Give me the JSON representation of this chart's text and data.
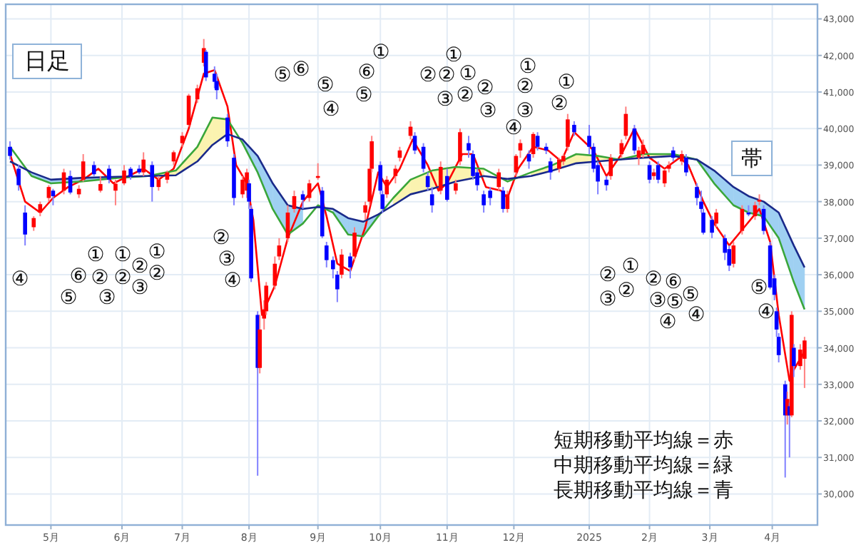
{
  "chart_data": {
    "type": "candlestick",
    "title": "日足",
    "x": [
      "2024-04-12",
      "2024-04-16",
      "2024-04-19",
      "2024-04-23",
      "2024-04-26",
      "2024-04-30",
      "2024-05-02",
      "2024-05-07",
      "2024-05-10",
      "2024-05-14",
      "2024-05-16",
      "2024-05-21",
      "2024-05-24",
      "2024-05-28",
      "2024-05-31",
      "2024-06-04",
      "2024-06-07",
      "2024-06-11",
      "2024-06-13",
      "2024-06-17",
      "2024-06-20",
      "2024-06-24",
      "2024-06-27",
      "2024-07-01",
      "2024-07-04",
      "2024-07-08",
      "2024-07-11",
      "2024-07-12",
      "2024-07-16",
      "2024-07-17",
      "2024-07-22",
      "2024-07-25",
      "2024-07-29",
      "2024-07-31",
      "2024-08-01",
      "2024-08-02",
      "2024-08-05",
      "2024-08-06",
      "2024-08-08",
      "2024-08-09",
      "2024-08-13",
      "2024-08-15",
      "2024-08-19",
      "2024-08-22",
      "2024-08-26",
      "2024-08-29",
      "2024-09-02",
      "2024-09-04",
      "2024-09-06",
      "2024-09-09",
      "2024-09-11",
      "2024-09-13",
      "2024-09-17",
      "2024-09-19",
      "2024-09-24",
      "2024-09-26",
      "2024-09-27",
      "2024-10-01",
      "2024-10-02",
      "2024-10-04",
      "2024-10-08",
      "2024-10-10",
      "2024-10-15",
      "2024-10-17",
      "2024-10-21",
      "2024-10-23",
      "2024-10-25",
      "2024-10-29",
      "2024-11-01",
      "2024-11-05",
      "2024-11-07",
      "2024-11-11",
      "2024-11-13",
      "2024-11-15",
      "2024-11-18",
      "2024-11-21",
      "2024-11-25",
      "2024-11-27",
      "2024-11-29",
      "2024-12-03",
      "2024-12-05",
      "2024-12-09",
      "2024-12-11",
      "2024-12-13",
      "2024-12-17",
      "2024-12-19",
      "2024-12-23",
      "2024-12-25",
      "2024-12-27",
      "2024-12-30",
      "2025-01-06",
      "2025-01-08",
      "2025-01-10",
      "2025-01-14",
      "2025-01-16",
      "2025-01-21",
      "2025-01-23",
      "2025-01-27",
      "2025-01-29",
      "2025-01-31",
      "2025-02-03",
      "2025-02-05",
      "2025-02-07",
      "2025-02-10",
      "2025-02-12",
      "2025-02-14",
      "2025-02-18",
      "2025-02-20",
      "2025-02-25",
      "2025-02-27",
      "2025-02-28",
      "2025-03-04",
      "2025-03-06",
      "2025-03-10",
      "2025-03-12",
      "2025-03-14",
      "2025-03-18",
      "2025-03-21",
      "2025-03-24",
      "2025-03-26",
      "2025-03-28",
      "2025-03-31",
      "2025-04-02",
      "2025-04-03",
      "2025-04-04",
      "2025-04-07",
      "2025-04-08",
      "2025-04-09",
      "2025-04-10",
      "2025-04-11",
      "2025-04-14",
      "2025-04-16"
    ],
    "ohlc": [
      [
        39500,
        39650,
        39150,
        39250
      ],
      [
        38900,
        39000,
        38300,
        38450
      ],
      [
        37700,
        37900,
        36800,
        37100
      ],
      [
        37300,
        37600,
        37200,
        37550
      ],
      [
        37700,
        38000,
        37600,
        37930
      ],
      [
        38100,
        38450,
        38000,
        38400
      ],
      [
        38300,
        38350,
        37900,
        38150
      ],
      [
        38300,
        38900,
        38200,
        38800
      ],
      [
        38700,
        38850,
        38200,
        38250
      ],
      [
        38200,
        38450,
        38100,
        38350
      ],
      [
        38600,
        39300,
        38550,
        39100
      ],
      [
        39000,
        39100,
        38700,
        38750
      ],
      [
        38300,
        38700,
        38250,
        38480
      ],
      [
        38900,
        39000,
        38500,
        38600
      ],
      [
        38300,
        38600,
        37900,
        38490
      ],
      [
        38500,
        39000,
        38450,
        38850
      ],
      [
        38900,
        38950,
        38600,
        38680
      ],
      [
        38900,
        39000,
        38750,
        38800
      ],
      [
        38800,
        39350,
        38700,
        39150
      ],
      [
        39000,
        39100,
        38000,
        38400
      ],
      [
        38400,
        38700,
        38300,
        38600
      ],
      [
        38600,
        38850,
        38500,
        38800
      ],
      [
        39100,
        39400,
        39000,
        39350
      ],
      [
        39600,
        39900,
        39500,
        39800
      ],
      [
        40100,
        40950,
        40050,
        40900
      ],
      [
        40800,
        41200,
        40700,
        41100
      ],
      [
        41800,
        42450,
        41700,
        42200
      ],
      [
        42100,
        42150,
        41300,
        41400
      ],
      [
        41500,
        41700,
        41100,
        41280
      ],
      [
        41300,
        41500,
        40800,
        41050
      ],
      [
        40300,
        40400,
        39500,
        39650
      ],
      [
        39200,
        39300,
        37900,
        38100
      ],
      [
        38200,
        38700,
        38100,
        38600
      ],
      [
        38300,
        38900,
        38100,
        38800
      ],
      [
        38500,
        38600,
        37800,
        38000
      ],
      [
        37800,
        37900,
        35800,
        35900
      ],
      [
        34900,
        35000,
        30500,
        33450
      ],
      [
        33450,
        34900,
        33300,
        34500
      ],
      [
        34800,
        35300,
        34500,
        35050
      ],
      [
        35000,
        35800,
        34900,
        35700
      ],
      [
        35700,
        36500,
        35600,
        36300
      ],
      [
        36500,
        37000,
        36400,
        36800
      ],
      [
        37000,
        37900,
        36900,
        37700
      ],
      [
        37800,
        38300,
        37700,
        38150
      ],
      [
        38200,
        38300,
        37800,
        38050
      ],
      [
        38100,
        38600,
        38000,
        38500
      ],
      [
        38650,
        39050,
        38600,
        38700
      ],
      [
        38300,
        38400,
        37000,
        37050
      ],
      [
        36800,
        36900,
        36200,
        36400
      ],
      [
        36400,
        36500,
        35900,
        36150
      ],
      [
        36000,
        36100,
        35250,
        35600
      ],
      [
        36000,
        36700,
        35900,
        36550
      ],
      [
        36500,
        36600,
        35900,
        36200
      ],
      [
        36500,
        37300,
        36400,
        37150
      ],
      [
        37700,
        38000,
        37500,
        37900
      ],
      [
        38000,
        38900,
        37900,
        38900
      ],
      [
        38900,
        39800,
        38800,
        39650
      ],
      [
        39000,
        39100,
        38200,
        38300
      ],
      [
        38200,
        38300,
        37700,
        37800
      ],
      [
        38200,
        38700,
        38100,
        38600
      ],
      [
        38700,
        39000,
        38500,
        38900
      ],
      [
        39200,
        39500,
        39100,
        39400
      ],
      [
        39800,
        40200,
        39700,
        40050
      ],
      [
        39800,
        39900,
        39300,
        39400
      ],
      [
        39500,
        39600,
        38800,
        38900
      ],
      [
        38700,
        38800,
        38300,
        38400
      ],
      [
        38200,
        38400,
        37700,
        37900
      ],
      [
        38300,
        39100,
        38200,
        38950
      ],
      [
        38700,
        38900,
        38000,
        38050
      ],
      [
        38300,
        38600,
        38200,
        38500
      ],
      [
        39100,
        40000,
        39000,
        39900
      ],
      [
        39600,
        39800,
        39200,
        39400
      ],
      [
        39300,
        39400,
        38600,
        38700
      ],
      [
        38800,
        38900,
        38300,
        38450
      ],
      [
        38200,
        38300,
        37700,
        37900
      ],
      [
        38300,
        38400,
        37900,
        38100
      ],
      [
        38400,
        38900,
        38300,
        38800
      ],
      [
        38300,
        38400,
        37700,
        37800
      ],
      [
        37800,
        38300,
        37700,
        38200
      ],
      [
        38800,
        39300,
        38700,
        39250
      ],
      [
        39400,
        39700,
        39200,
        39600
      ],
      [
        39300,
        39400,
        38900,
        39100
      ],
      [
        39300,
        39900,
        39200,
        39850
      ],
      [
        39800,
        39900,
        39400,
        39500
      ],
      [
        39500,
        39600,
        39300,
        39400
      ],
      [
        39100,
        39200,
        38600,
        38800
      ],
      [
        38900,
        39200,
        38800,
        39150
      ],
      [
        39100,
        39300,
        39000,
        39250
      ],
      [
        39500,
        40400,
        39400,
        40250
      ],
      [
        40100,
        40200,
        39800,
        39900
      ],
      [
        39800,
        40100,
        39300,
        39500
      ],
      [
        39500,
        39600,
        38800,
        38900
      ],
      [
        39000,
        39100,
        38200,
        38550
      ],
      [
        38600,
        38700,
        38300,
        38450
      ],
      [
        38700,
        39300,
        38600,
        39200
      ],
      [
        39300,
        39700,
        39200,
        39600
      ],
      [
        39800,
        40600,
        39700,
        40400
      ],
      [
        40000,
        40100,
        39300,
        39400
      ],
      [
        39200,
        39500,
        39000,
        39400
      ],
      [
        39300,
        39700,
        39200,
        39550
      ],
      [
        39000,
        39100,
        38500,
        38600
      ],
      [
        38700,
        38900,
        38600,
        38800
      ],
      [
        39000,
        39100,
        38500,
        38600
      ],
      [
        38500,
        38900,
        38400,
        38850
      ],
      [
        38900,
        39100,
        38800,
        39000
      ],
      [
        39400,
        39500,
        39100,
        39200
      ],
      [
        39100,
        39400,
        39000,
        39300
      ],
      [
        39200,
        39300,
        38700,
        38800
      ],
      [
        38400,
        38500,
        37900,
        38100
      ],
      [
        38000,
        38300,
        37700,
        37800
      ],
      [
        37700,
        37800,
        37100,
        37150
      ],
      [
        37500,
        37600,
        37000,
        37150
      ],
      [
        37400,
        37800,
        37300,
        37700
      ],
      [
        37000,
        37100,
        36400,
        36600
      ],
      [
        36700,
        36800,
        36100,
        36250
      ],
      [
        36300,
        36900,
        36200,
        36800
      ],
      [
        37200,
        37900,
        37100,
        37800
      ],
      [
        37700,
        37900,
        37600,
        37650
      ],
      [
        37600,
        38000,
        37500,
        37900
      ],
      [
        38000,
        38200,
        37900,
        38050
      ],
      [
        37800,
        37900,
        37100,
        37200
      ],
      [
        36800,
        36900,
        35600,
        35650
      ],
      [
        35900,
        36000,
        35300,
        35450
      ],
      [
        35000,
        35100,
        34300,
        34500
      ],
      [
        34300,
        34400,
        33600,
        33800
      ],
      [
        33000,
        33100,
        30450,
        32150
      ],
      [
        32150,
        32800,
        31900,
        32600
      ],
      [
        32400,
        32500,
        31000,
        32150
      ],
      [
        32150,
        35000,
        32100,
        34900
      ],
      [
        34000,
        34100,
        33200,
        33500
      ],
      [
        33500,
        34100,
        33400,
        33950
      ],
      [
        33700,
        34300,
        32900,
        34200
      ]
    ],
    "colors": [
      "#0000ff",
      "#0000ff",
      "#0000ff",
      "#ff0000",
      "#ff0000",
      "#ff0000",
      "#0000ff",
      "#ff0000",
      "#0000ff",
      "#ff0000",
      "#ff0000",
      "#0000ff",
      "#ff0000",
      "#0000ff",
      "#ff0000",
      "#ff0000",
      "#0000ff",
      "#0000ff",
      "#ff0000",
      "#0000ff",
      "#ff0000",
      "#ff0000",
      "#ff0000",
      "#ff0000",
      "#ff0000",
      "#ff0000",
      "#ff0000",
      "#0000ff",
      "#0000ff",
      "#0000ff",
      "#0000ff",
      "#0000ff",
      "#ff0000",
      "#ff0000",
      "#0000ff",
      "#0000ff",
      "#0000ff",
      "#ff0000",
      "#ff0000",
      "#ff0000",
      "#ff0000",
      "#ff0000",
      "#ff0000",
      "#ff0000",
      "#0000ff",
      "#ff0000",
      "#ff0000",
      "#0000ff",
      "#0000ff",
      "#0000ff",
      "#0000ff",
      "#ff0000",
      "#0000ff",
      "#ff0000",
      "#ff0000",
      "#ff0000",
      "#ff0000",
      "#0000ff",
      "#0000ff",
      "#ff0000",
      "#ff0000",
      "#ff0000",
      "#ff0000",
      "#0000ff",
      "#0000ff",
      "#0000ff",
      "#0000ff",
      "#ff0000",
      "#0000ff",
      "#ff0000",
      "#ff0000",
      "#0000ff",
      "#0000ff",
      "#0000ff",
      "#0000ff",
      "#0000ff",
      "#ff0000",
      "#0000ff",
      "#ff0000",
      "#ff0000",
      "#ff0000",
      "#0000ff",
      "#ff0000",
      "#0000ff",
      "#0000ff",
      "#0000ff",
      "#ff0000",
      "#ff0000",
      "#ff0000",
      "#0000ff",
      "#0000ff",
      "#0000ff",
      "#0000ff",
      "#0000ff",
      "#ff0000",
      "#ff0000",
      "#ff0000",
      "#0000ff",
      "#ff0000",
      "#ff0000",
      "#0000ff",
      "#ff0000",
      "#0000ff",
      "#ff0000",
      "#ff0000",
      "#0000ff",
      "#ff0000",
      "#0000ff",
      "#0000ff",
      "#0000ff",
      "#0000ff",
      "#0000ff",
      "#ff0000",
      "#0000ff",
      "#0000ff",
      "#ff0000",
      "#ff0000",
      "#0000ff",
      "#ff0000",
      "#ff0000",
      "#0000ff",
      "#0000ff",
      "#0000ff",
      "#0000ff",
      "#0000ff",
      "#0000ff",
      "#ff0000",
      "#0000ff",
      "#ff0000",
      "#0000ff",
      "#ff0000",
      "#ff0000"
    ],
    "series": [
      {
        "type": "line",
        "color": "#ff0000",
        "x": [
          "2024-04-12",
          "2024-04-19",
          "2024-04-26",
          "2024-05-02",
          "2024-05-09",
          "2024-05-16",
          "2024-05-23",
          "2024-05-30",
          "2024-06-06",
          "2024-06-13",
          "2024-06-20",
          "2024-06-27",
          "2024-07-04",
          "2024-07-11",
          "2024-07-16",
          "2024-07-22",
          "2024-07-26",
          "2024-07-31",
          "2024-08-03",
          "2024-08-07",
          "2024-08-13",
          "2024-08-19",
          "2024-08-26",
          "2024-09-02",
          "2024-09-06",
          "2024-09-11",
          "2024-09-17",
          "2024-09-24",
          "2024-09-30",
          "2024-10-04",
          "2024-10-10",
          "2024-10-16",
          "2024-10-23",
          "2024-10-28",
          "2024-11-01",
          "2024-11-08",
          "2024-11-13",
          "2024-11-19",
          "2024-11-26",
          "2024-11-29",
          "2024-12-04",
          "2024-12-11",
          "2024-12-18",
          "2024-12-24",
          "2024-12-30",
          "2025-01-08",
          "2025-01-14",
          "2025-01-21",
          "2025-01-27",
          "2025-02-03",
          "2025-02-10",
          "2025-02-17",
          "2025-02-21",
          "2025-02-28",
          "2025-03-05",
          "2025-03-12",
          "2025-03-19",
          "2025-03-26",
          "2025-03-31",
          "2025-04-04",
          "2025-04-09",
          "2025-04-11",
          "2025-04-16"
        ],
        "values": [
          39300,
          38000,
          37700,
          38100,
          38400,
          38600,
          38900,
          38500,
          38700,
          38900,
          38600,
          38900,
          40000,
          41500,
          41600,
          40600,
          39000,
          38500,
          37500,
          34900,
          35700,
          37000,
          38000,
          38500,
          37600,
          36300,
          36100,
          37300,
          38800,
          38400,
          38900,
          39700,
          39000,
          38300,
          38500,
          39300,
          39300,
          38400,
          38300,
          38100,
          38900,
          39500,
          39400,
          39100,
          39900,
          39400,
          38700,
          39300,
          40000,
          39200,
          38900,
          39200,
          39000,
          38000,
          37400,
          36800,
          37300,
          37800,
          36900,
          34900,
          33100,
          33400,
          33900
        ]
      },
      {
        "type": "line",
        "color": "#3aa63a",
        "x": [
          "2024-04-12",
          "2024-04-22",
          "2024-05-01",
          "2024-05-15",
          "2024-06-01",
          "2024-06-15",
          "2024-06-28",
          "2024-07-08",
          "2024-07-15",
          "2024-07-22",
          "2024-07-29",
          "2024-08-05",
          "2024-08-12",
          "2024-08-19",
          "2024-08-26",
          "2024-09-02",
          "2024-09-09",
          "2024-09-16",
          "2024-09-23",
          "2024-09-30",
          "2024-10-07",
          "2024-10-15",
          "2024-10-25",
          "2024-11-05",
          "2024-11-18",
          "2024-11-29",
          "2024-12-10",
          "2024-12-20",
          "2024-12-31",
          "2025-01-10",
          "2025-01-20",
          "2025-01-31",
          "2025-02-14",
          "2025-02-25",
          "2025-03-05",
          "2025-03-14",
          "2025-03-21",
          "2025-03-28",
          "2025-04-04",
          "2025-04-11",
          "2025-04-16"
        ],
        "values": [
          39500,
          38700,
          38500,
          38550,
          38650,
          38700,
          38850,
          39500,
          40300,
          40250,
          39600,
          38800,
          37800,
          37100,
          37400,
          37900,
          37700,
          37100,
          37050,
          37600,
          38100,
          38600,
          38850,
          38950,
          38900,
          38550,
          38800,
          39000,
          39300,
          39250,
          39150,
          39300,
          39300,
          39150,
          38500,
          37900,
          37700,
          37600,
          37000,
          35800,
          35050
        ],
        "lower": [
          null,
          null,
          null,
          null,
          null,
          38700,
          38720,
          39100,
          39550,
          39850,
          null,
          null,
          null,
          null,
          null,
          null,
          null,
          null,
          null,
          null,
          37900,
          38200,
          38350,
          38550,
          38700,
          null,
          38700,
          38850,
          39050,
          39100,
          39150,
          39200,
          39250,
          39150,
          null,
          null,
          null,
          null,
          null,
          null,
          null
        ],
        "upper": [
          null,
          null,
          null,
          null,
          null,
          38700,
          38850,
          39500,
          40300,
          40250,
          null,
          null,
          null,
          null,
          null,
          null,
          null,
          null,
          null,
          null,
          38100,
          38600,
          38850,
          38950,
          38900,
          null,
          38800,
          39000,
          39300,
          39250,
          39150,
          39300,
          39300,
          39150,
          null,
          null,
          null,
          null,
          null,
          null,
          null
        ]
      },
      {
        "type": "line",
        "color": "#1a2a8a",
        "x": [
          "2024-04-12",
          "2024-04-22",
          "2024-05-01",
          "2024-05-15",
          "2024-06-01",
          "2024-06-15",
          "2024-06-28",
          "2024-07-08",
          "2024-07-15",
          "2024-07-22",
          "2024-07-29",
          "2024-08-05",
          "2024-08-12",
          "2024-08-19",
          "2024-08-26",
          "2024-09-02",
          "2024-09-09",
          "2024-09-16",
          "2024-09-23",
          "2024-09-30",
          "2024-10-07",
          "2024-10-15",
          "2024-10-25",
          "2024-11-05",
          "2024-11-18",
          "2024-11-29",
          "2024-12-10",
          "2024-12-20",
          "2024-12-31",
          "2025-01-10",
          "2025-01-20",
          "2025-01-31",
          "2025-02-14",
          "2025-02-25",
          "2025-03-05",
          "2025-03-14",
          "2025-03-21",
          "2025-03-28",
          "2025-04-04",
          "2025-04-11",
          "2025-04-16"
        ],
        "values": [
          39100,
          38800,
          38600,
          38650,
          38680,
          38700,
          38720,
          39100,
          39550,
          39850,
          39700,
          39250,
          38500,
          37900,
          37800,
          37850,
          37800,
          37550,
          37450,
          37650,
          37900,
          38200,
          38350,
          38550,
          38700,
          38620,
          38700,
          38850,
          39050,
          39100,
          39150,
          39200,
          39250,
          39150,
          38850,
          38400,
          38150,
          38000,
          37700,
          36800,
          36200
        ],
        "lower": [
          null,
          38700,
          38500,
          38550,
          38650,
          38700,
          null,
          null,
          null,
          null,
          39600,
          38800,
          37800,
          37100,
          37400,
          null,
          37700,
          37100,
          37050,
          37600,
          null,
          null,
          null,
          null,
          null,
          null,
          null,
          null,
          null,
          null,
          null,
          null,
          null,
          39150,
          38500,
          37900,
          37700,
          37600,
          37000,
          35800,
          35050
        ],
        "upper": [
          null,
          38800,
          38600,
          38650,
          38680,
          38700,
          null,
          null,
          null,
          null,
          39700,
          39250,
          38500,
          37900,
          37800,
          null,
          37800,
          37550,
          37450,
          37650,
          null,
          null,
          null,
          null,
          null,
          null,
          null,
          null,
          null,
          null,
          null,
          null,
          null,
          39150,
          38850,
          38400,
          38150,
          38000,
          37700,
          36800,
          36200
        ]
      }
    ],
    "xlim": [
      "2024-04-10",
      "2025-04-22"
    ],
    "ylim": [
      29150,
      43400
    ],
    "xticks": [
      {
        "value": "2024-05-01",
        "label": "5月"
      },
      {
        "value": "2024-06-03",
        "label": "6月"
      },
      {
        "value": "2024-07-01",
        "label": "7月"
      },
      {
        "value": "2024-08-01",
        "label": "8月"
      },
      {
        "value": "2024-09-02",
        "label": "9月"
      },
      {
        "value": "2024-10-01",
        "label": "10月"
      },
      {
        "value": "2024-11-01",
        "label": "11月"
      },
      {
        "value": "2024-12-02",
        "label": "12月"
      },
      {
        "value": "2025-01-06",
        "label": "2025"
      },
      {
        "value": "2025-02-03",
        "label": "2月"
      },
      {
        "value": "2025-03-03",
        "label": "3月"
      },
      {
        "value": "2025-04-01",
        "label": "4月"
      }
    ],
    "yticks": [
      {
        "value": 30000,
        "label": "30,000"
      },
      {
        "value": 31000,
        "label": "31,000"
      },
      {
        "value": 32000,
        "label": "32,000"
      },
      {
        "value": 33000,
        "label": "33,000"
      },
      {
        "value": 34000,
        "label": "34,000"
      },
      {
        "value": 35000,
        "label": "35,000"
      },
      {
        "value": 36000,
        "label": "36,000"
      },
      {
        "value": 37000,
        "label": "37,000"
      },
      {
        "value": 38000,
        "label": "38,000"
      },
      {
        "value": 39000,
        "label": "39,000"
      },
      {
        "value": 40000,
        "label": "40,000"
      },
      {
        "value": 41000,
        "label": "41,000"
      },
      {
        "value": 42000,
        "label": "42,000"
      },
      {
        "value": 43000,
        "label": "43,000"
      }
    ],
    "grid": true,
    "annotations": [
      "短期移動平均線＝赤",
      "中期移動平均線＝緑",
      "長期移動平均線＝青",
      "帯",
      "④",
      "⑤",
      "⑥",
      "①",
      "②",
      "③",
      "①",
      "②",
      "②",
      "③",
      "①",
      "②",
      "②",
      "③",
      "④",
      "⑤",
      "⑥",
      "⑤",
      "④",
      "①",
      "⑥",
      "⑤",
      "①",
      "②",
      "②",
      "①",
      "③",
      "②",
      "②",
      "③",
      "①",
      "②",
      "③",
      "④",
      "①",
      "②",
      "②",
      "①",
      "③",
      "②",
      "②",
      "⑥",
      "③",
      "⑤",
      "⑤",
      "④",
      "④",
      "⑤",
      "④"
    ]
  }
}
